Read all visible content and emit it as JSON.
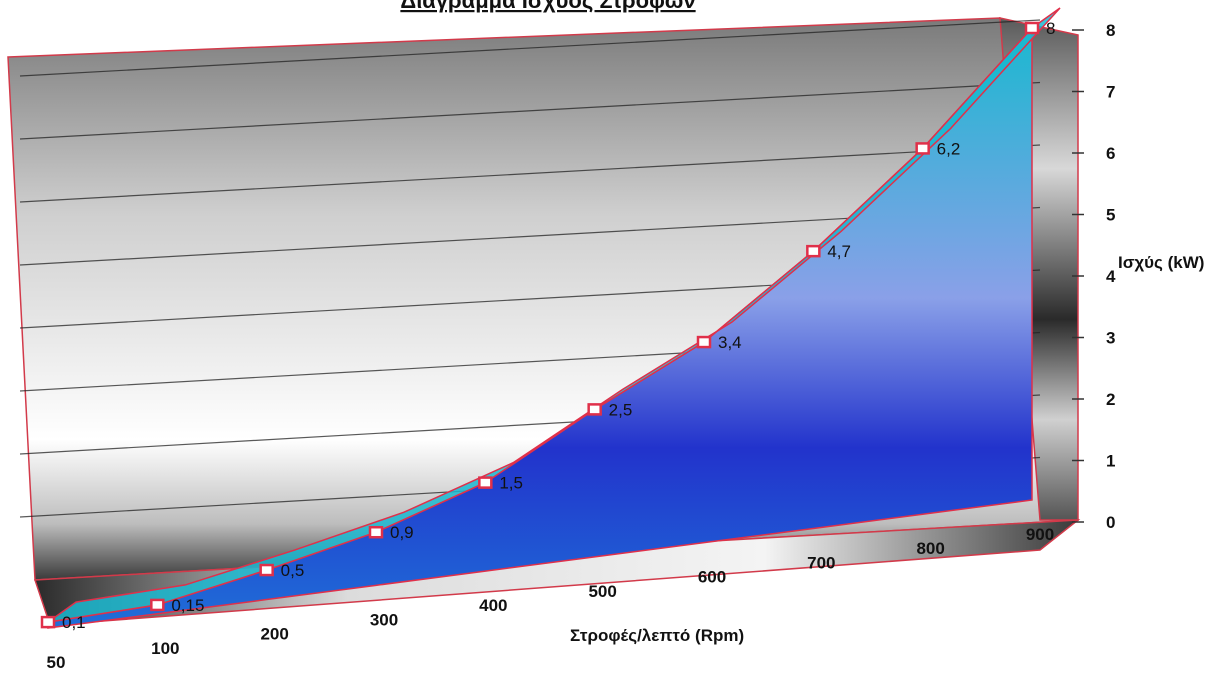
{
  "chart_data": {
    "type": "area",
    "title": "Διάγραμμα Ισχύος Στροφών",
    "xlabel": "Στροφές/λεπτό (Rpm)",
    "ylabel": "Ισχύς (kW)",
    "x_ticks": [
      "50",
      "100",
      "200",
      "300",
      "400",
      "500",
      "600",
      "700",
      "800",
      "900"
    ],
    "y_ticks": [
      "0",
      "1",
      "2",
      "3",
      "4",
      "5",
      "6",
      "7",
      "8"
    ],
    "ylim": [
      0,
      8
    ],
    "three_d": true,
    "grid": true,
    "series": [
      {
        "x": [
          50,
          100,
          200,
          300,
          400,
          500,
          600,
          700,
          800,
          900
        ],
        "values": [
          0.1,
          0.15,
          0.5,
          0.9,
          1.5,
          2.5,
          3.4,
          4.7,
          6.2,
          8
        ],
        "labels": [
          "0,1",
          "0,15",
          "0,5",
          "0,9",
          "1,5",
          "2,5",
          "3,4",
          "4,7",
          "6,2",
          "8"
        ]
      }
    ],
    "colors": {
      "area_top": "#1ab8d0",
      "area_mid": "#8aa0e8",
      "area_deep": "#2233cc",
      "area_bottom": "#1f6fd8",
      "outline": "#e0304a",
      "marker": "#e0304a"
    }
  }
}
